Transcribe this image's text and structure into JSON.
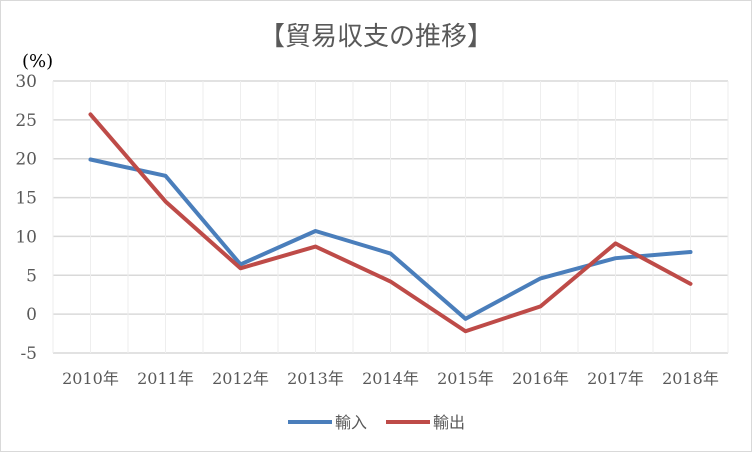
{
  "chart_data": {
    "type": "line",
    "title": "【貿易収支の推移】",
    "ylabel": "(%)",
    "xlabel": "",
    "categories": [
      "2010年",
      "2011年",
      "2012年",
      "2013年",
      "2014年",
      "2015年",
      "2016年",
      "2017年",
      "2018年"
    ],
    "ylim": [
      -5,
      30
    ],
    "yticks": [
      "30",
      "25",
      "20",
      "15",
      "10",
      "5",
      "0",
      "-5"
    ],
    "grid": true,
    "legend_position": "bottom",
    "series": [
      {
        "name": "輸入",
        "color": "#4a7ebb",
        "values": [
          19.9,
          17.8,
          6.4,
          10.7,
          7.8,
          -0.6,
          4.6,
          7.2,
          8.0
        ]
      },
      {
        "name": "輸出",
        "color": "#be4b48",
        "values": [
          25.7,
          14.5,
          5.9,
          8.7,
          4.2,
          -2.2,
          1.0,
          9.1,
          3.9
        ]
      }
    ]
  }
}
